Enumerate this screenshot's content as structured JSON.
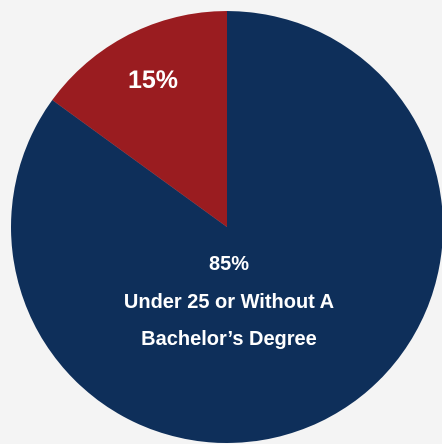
{
  "chart_data": {
    "type": "pie",
    "title": "",
    "slices": [
      {
        "value": 85,
        "label_value": "85%",
        "label_text": [
          "Under 25 or Without A",
          "Bachelor’s Degree"
        ],
        "color": "#0e2f5a"
      },
      {
        "value": 15,
        "label_value": "15%",
        "label_text": [],
        "color": "#9a1c20"
      }
    ],
    "background": "#f4f4f4"
  }
}
